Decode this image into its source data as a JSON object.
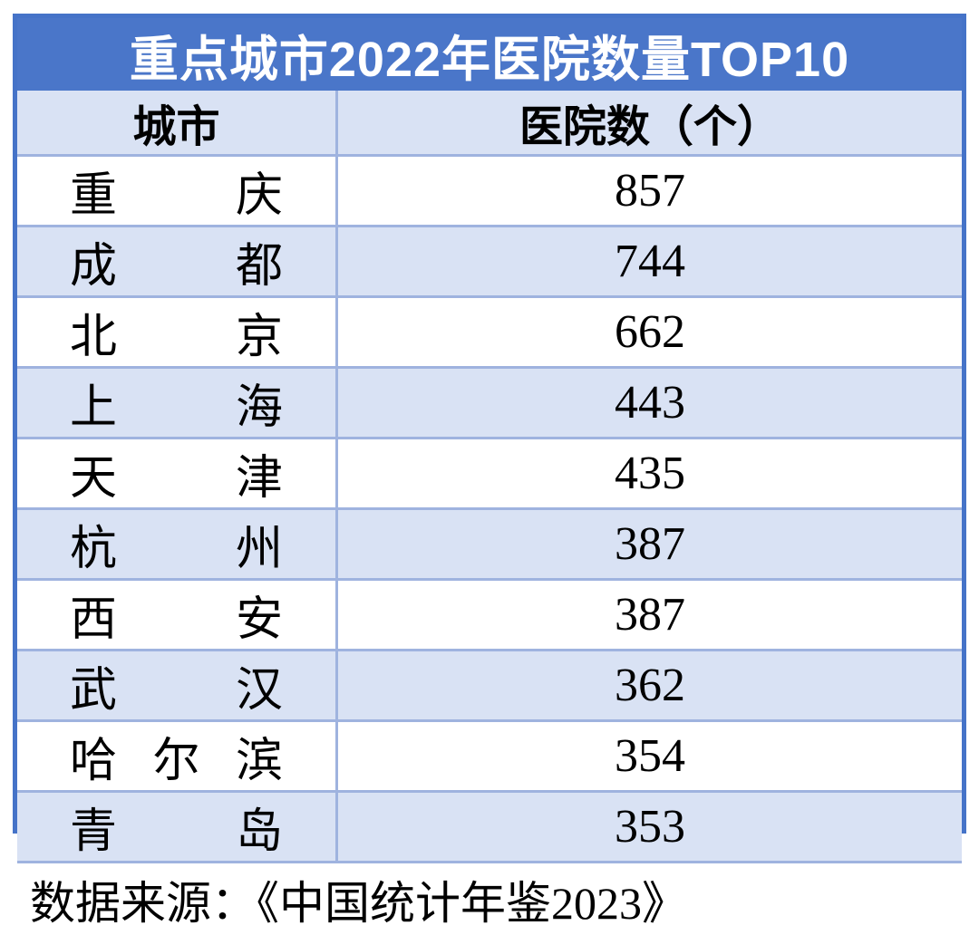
{
  "title": "重点城市2022年医院数量TOP10",
  "columns": {
    "city": "城市",
    "count": "医院数（个）"
  },
  "rows": [
    {
      "city": "重庆",
      "count": "857"
    },
    {
      "city": "成都",
      "count": "744"
    },
    {
      "city": "北京",
      "count": "662"
    },
    {
      "city": "上海",
      "count": "443"
    },
    {
      "city": "天津",
      "count": "435"
    },
    {
      "city": "杭州",
      "count": "387"
    },
    {
      "city": "西安",
      "count": "387"
    },
    {
      "city": "武汉",
      "count": "362"
    },
    {
      "city": "哈尔滨",
      "count": "354"
    },
    {
      "city": "青岛",
      "count": "353"
    }
  ],
  "footer": {
    "text": "数据来源：《中国统计年鉴2023》"
  },
  "colors": {
    "title_bg": "#4A76C9",
    "title_fg": "#FFFFFF",
    "alt_row_bg": "#D9E2F4",
    "grid_line": "#9FB3DF",
    "outer_border": "#4573C8",
    "text": "#000000",
    "page_bg": "#FFFFFF"
  },
  "chart_data": {
    "type": "table",
    "title": "重点城市2022年医院数量TOP10",
    "columns": [
      "城市",
      "医院数（个）"
    ],
    "categories": [
      "重庆",
      "成都",
      "北京",
      "上海",
      "天津",
      "杭州",
      "西安",
      "武汉",
      "哈尔滨",
      "青岛"
    ],
    "values": [
      857,
      744,
      662,
      443,
      435,
      387,
      387,
      362,
      354,
      353
    ],
    "rows": [
      [
        "重庆",
        857
      ],
      [
        "成都",
        744
      ],
      [
        "北京",
        662
      ],
      [
        "上海",
        443
      ],
      [
        "天津",
        435
      ],
      [
        "杭州",
        387
      ],
      [
        "西安",
        387
      ],
      [
        "武汉",
        362
      ],
      [
        "哈尔滨",
        354
      ],
      [
        "青岛",
        353
      ]
    ],
    "source": "数据来源：《中国统计年鉴2023》",
    "layout": {
      "header_style": "light-blue band, bold serif, centered",
      "title_style": "blue band, bold white sans, centered",
      "row_striping": "white / light-blue alternating starting white",
      "city_text": "characters distributed (justified) across fixed width",
      "grid": "light periwinkle inner gridlines, thick medium-blue outer border"
    }
  }
}
